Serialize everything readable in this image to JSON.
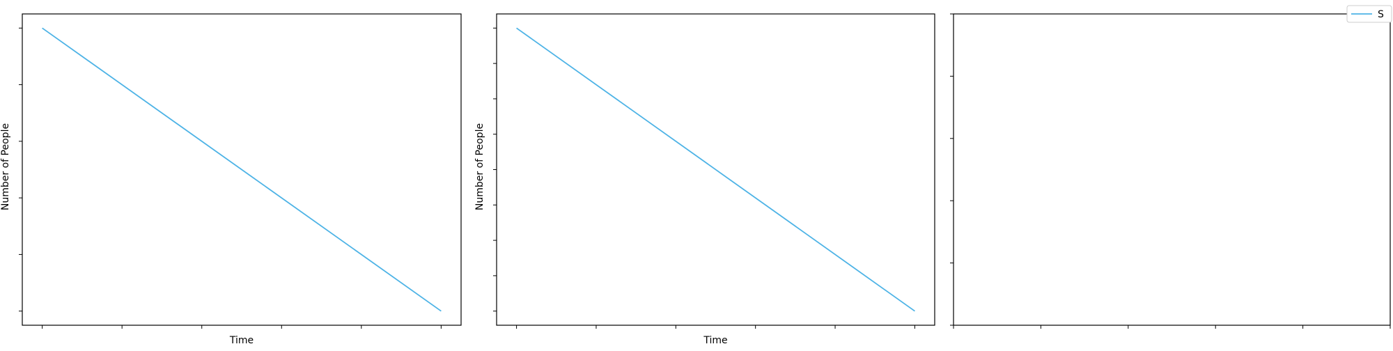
{
  "chart_data": [
    {
      "type": "line",
      "title": "",
      "xlabel": "Time",
      "ylabel": "Number of People",
      "x": [
        0,
        1
      ],
      "series": [
        {
          "values": [
            1,
            0
          ]
        }
      ],
      "xlim": [
        -0.05,
        1.05
      ],
      "ylim": [
        -0.05,
        1.05
      ],
      "xticks": [
        0,
        0.2,
        0.4,
        0.6,
        0.8,
        1.0
      ],
      "yticks": [
        0,
        0.2,
        0.4,
        0.6,
        0.8,
        1.0
      ],
      "tick_labels_visible": false,
      "grid": false
    },
    {
      "type": "line",
      "title": "",
      "xlabel": "Time",
      "ylabel": "Number of People",
      "x": [
        0,
        1
      ],
      "series": [
        {
          "values": [
            1,
            0
          ]
        }
      ],
      "xlim": [
        -0.05,
        1.05
      ],
      "ylim": [
        -0.05,
        1.05
      ],
      "xticks": [
        0,
        0.2,
        0.4,
        0.6,
        0.8,
        1.0
      ],
      "yticks": [
        0,
        0.125,
        0.25,
        0.375,
        0.5,
        0.625,
        0.75,
        0.875,
        1.0
      ],
      "tick_labels_visible": false,
      "grid": false
    },
    {
      "type": "line",
      "title": "",
      "xlabel": "",
      "ylabel": "",
      "x": [],
      "series": [],
      "xlim": [
        0,
        1
      ],
      "ylim": [
        0,
        1
      ],
      "xticks": [
        0,
        0.2,
        0.4,
        0.6,
        0.8,
        1.0
      ],
      "yticks": [
        0,
        0.2,
        0.4,
        0.6,
        0.8,
        1.0
      ],
      "tick_labels_visible": false,
      "grid": false
    }
  ],
  "legend": {
    "placement": "top-right",
    "entries": [
      {
        "label": "S",
        "color": "#4db3e6"
      }
    ]
  },
  "colors": {
    "series": "#4db3e6",
    "axes": "#000000"
  }
}
